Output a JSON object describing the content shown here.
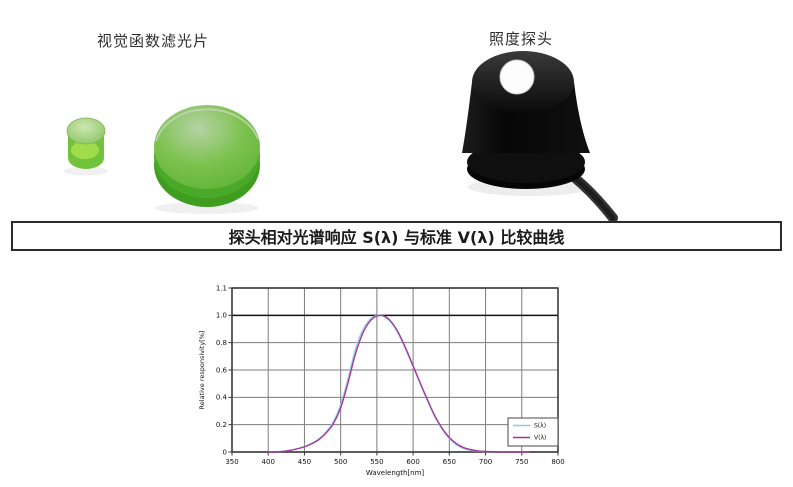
{
  "figures": {
    "filter": {
      "label": "视觉函数滤光片",
      "glass_color": "#55ad2e",
      "glass_highlight": "#c2d8b0",
      "glass_bright": "#8ed44e"
    },
    "probe": {
      "label": "照度探头",
      "body_color": "#0b0b0b",
      "aperture_color": "#fdfdfd",
      "cable_color": "#333333"
    }
  },
  "banner": {
    "title": "探头相对光谱响应 S(λ) 与标准 V(λ) 比较曲线",
    "border_color": "#2b2b2b",
    "text_color": "#1b1b1b"
  },
  "chart_data": {
    "type": "line",
    "title": "",
    "xlabel": "Wavelength[nm]",
    "ylabel": "Relative responsivity[%]",
    "xlim": [
      350,
      800
    ],
    "ylim": [
      0,
      1.1
    ],
    "x_ticks": [
      350,
      400,
      450,
      500,
      550,
      600,
      650,
      700,
      750,
      800
    ],
    "y_gridlines": [
      1.1,
      1.0,
      0.8,
      0.6,
      0.4,
      0.2,
      0
    ],
    "y_tick_labels": [
      "1.1",
      "1.0",
      "0.8",
      "0.6",
      "0.4",
      "0.2",
      "0"
    ],
    "grid": true,
    "legend_position": "lower-right",
    "colors": {
      "grid": "#7d7d7d",
      "border": "#3f3f3f",
      "unity_line": "#111111",
      "legend_border": "#666666"
    },
    "x": [
      400,
      410,
      420,
      430,
      440,
      450,
      460,
      470,
      480,
      490,
      500,
      510,
      520,
      530,
      540,
      550,
      560,
      570,
      580,
      590,
      600,
      610,
      620,
      630,
      640,
      650,
      660,
      670,
      680,
      690,
      700,
      710,
      720,
      730,
      740,
      750,
      760
    ],
    "series": [
      {
        "name": "S(λ)",
        "color": "#8ecbdd",
        "values": [
          0.0005,
          0.0016,
          0.005,
          0.013,
          0.025,
          0.041,
          0.064,
          0.097,
          0.148,
          0.224,
          0.345,
          0.535,
          0.745,
          0.888,
          0.968,
          1.0,
          0.99,
          0.944,
          0.86,
          0.746,
          0.622,
          0.495,
          0.372,
          0.256,
          0.166,
          0.097,
          0.051,
          0.025,
          0.012,
          0.006,
          0.003,
          0.0015,
          0.0008,
          0.0004,
          0.0002,
          0.0001,
          5e-05
        ]
      },
      {
        "name": "V(λ)",
        "color": "#aa2f9a",
        "values": [
          0.0004,
          0.0012,
          0.004,
          0.0116,
          0.023,
          0.038,
          0.06,
          0.091,
          0.139,
          0.208,
          0.323,
          0.503,
          0.71,
          0.862,
          0.954,
          0.995,
          0.995,
          0.952,
          0.87,
          0.757,
          0.631,
          0.503,
          0.381,
          0.265,
          0.175,
          0.107,
          0.061,
          0.032,
          0.017,
          0.0082,
          0.0041,
          0.0021,
          0.001,
          0.0005,
          0.00025,
          0.00012,
          6e-05
        ]
      }
    ]
  }
}
